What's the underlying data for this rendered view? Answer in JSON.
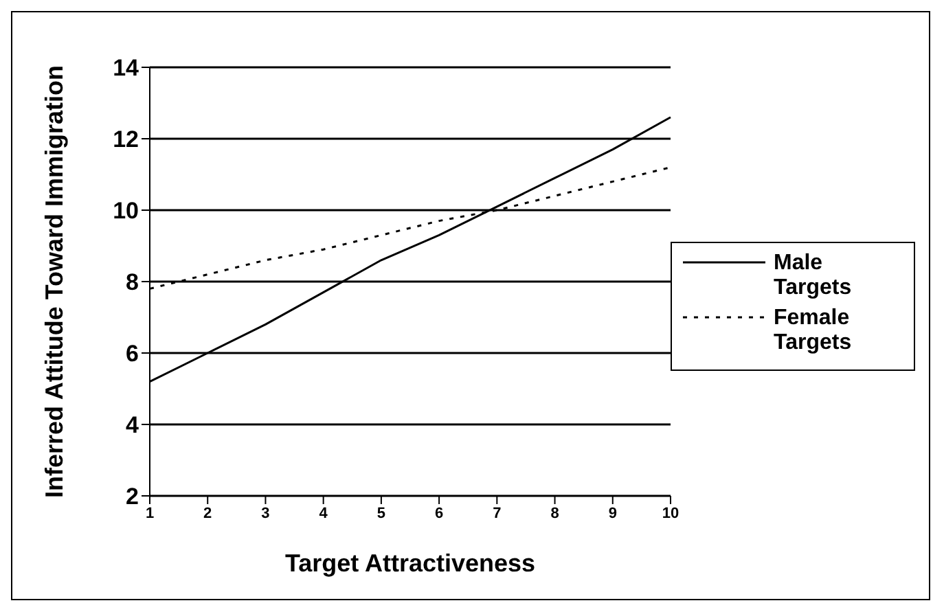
{
  "chart_data": {
    "type": "line",
    "xlabel": "Target Attractiveness",
    "ylabel": "Inferred Attitude Toward Immigration",
    "categories": [
      "1",
      "2",
      "3",
      "4",
      "5",
      "6",
      "7",
      "8",
      "9",
      "10"
    ],
    "series": [
      {
        "name": "Male Targets",
        "color": "#000000",
        "line_style": "solid",
        "values": [
          5.2,
          6.0,
          6.8,
          7.7,
          8.6,
          9.3,
          10.1,
          10.9,
          11.7,
          12.6
        ]
      },
      {
        "name": "Female Targets",
        "color": "#000000",
        "line_style": "dotted",
        "values": [
          7.8,
          8.2,
          8.6,
          8.9,
          9.3,
          9.7,
          10.0,
          10.4,
          10.8,
          11.2
        ]
      }
    ],
    "ylim": [
      2,
      14
    ],
    "yticks": [
      2,
      4,
      6,
      8,
      10,
      12,
      14
    ],
    "grid": "y",
    "legend": "right",
    "marker": "none"
  }
}
